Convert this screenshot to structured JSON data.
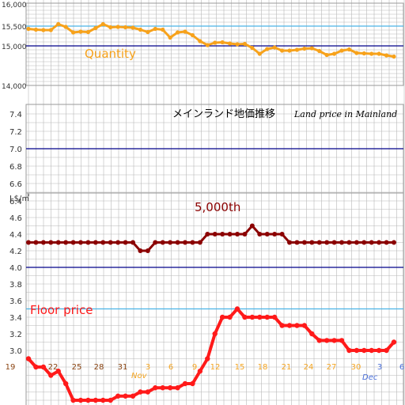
{
  "chart_data": {
    "type": "line",
    "title": "メインランド地価推移",
    "subtitle": "Land price in Mainland",
    "x_tick_labels": [
      "19",
      "22",
      "25",
      "28",
      "31",
      "3",
      "6",
      "9",
      "12",
      "15",
      "18",
      "21",
      "24",
      "27",
      "30",
      "3",
      "6"
    ],
    "month_labels": [
      "Nov",
      "Dec"
    ],
    "quantity_panel": {
      "label": "Quantity",
      "y_ticks": [
        "14,000",
        "15,000",
        "15,500",
        "16,000"
      ],
      "ylim": [
        14000,
        16000
      ],
      "reference_lines": [
        15000,
        15500
      ],
      "values": [
        15430,
        15410,
        15400,
        15400,
        15550,
        15480,
        15340,
        15360,
        15350,
        15450,
        15550,
        15470,
        15480,
        15470,
        15460,
        15410,
        15350,
        15430,
        15410,
        15210,
        15340,
        15360,
        15270,
        15120,
        15020,
        15080,
        15090,
        15060,
        15040,
        15050,
        14950,
        14800,
        14920,
        14960,
        14880,
        14880,
        14900,
        14930,
        14940,
        14870,
        14770,
        14800,
        14880,
        14910,
        14820,
        14810,
        14800,
        14800,
        14760,
        14730
      ]
    },
    "price_panel": {
      "y_unit": "L$/㎡",
      "y_ticks": [
        "3.0",
        "3.2",
        "3.4",
        "3.6",
        "3.8",
        "4.0",
        "4.2",
        "4.4",
        "4.6",
        "6.4",
        "6.6",
        "6.8",
        "7.0",
        "7.2",
        "7.4"
      ],
      "reference_lines": [
        3.5,
        4.0,
        7.0
      ],
      "series": [
        {
          "name": "5,000th",
          "color": "#8b0000",
          "values": [
            4.3,
            4.3,
            4.3,
            4.3,
            4.3,
            4.3,
            4.3,
            4.3,
            4.3,
            4.3,
            4.3,
            4.3,
            4.3,
            4.3,
            4.3,
            4.2,
            4.2,
            4.3,
            4.3,
            4.3,
            4.3,
            4.3,
            4.3,
            4.3,
            4.4,
            4.4,
            4.4,
            4.4,
            4.4,
            4.4,
            4.5,
            4.4,
            4.4,
            4.4,
            4.4,
            4.3,
            4.3,
            4.3,
            4.3,
            4.3,
            4.3,
            4.3,
            4.3,
            4.3,
            4.3,
            4.3,
            4.3,
            4.3,
            4.3,
            4.3
          ]
        },
        {
          "name": "Floor price",
          "color": "#ff1a1a",
          "values": [
            2.9,
            2.8,
            2.8,
            2.7,
            2.75,
            2.6,
            2.4,
            2.4,
            2.4,
            2.4,
            2.4,
            2.4,
            2.45,
            2.45,
            2.45,
            2.5,
            2.5,
            2.55,
            2.55,
            2.55,
            2.55,
            2.6,
            2.6,
            2.75,
            2.9,
            3.2,
            3.4,
            3.4,
            3.5,
            3.4,
            3.4,
            3.4,
            3.4,
            3.4,
            3.3,
            3.3,
            3.3,
            3.3,
            3.2,
            3.12,
            3.12,
            3.12,
            3.12,
            3.0,
            3.0,
            3.0,
            3.0,
            3.0,
            3.0,
            3.1
          ]
        }
      ]
    }
  },
  "colors": {
    "quantity": "#f7a21b",
    "grid": "#b8b8b8",
    "ref_dark": "#00008b",
    "ref_light": "#4ab3e6",
    "tick_brown": "#8b4513",
    "month_orange": "#f5a623",
    "month_blue": "#4a6fd8"
  }
}
